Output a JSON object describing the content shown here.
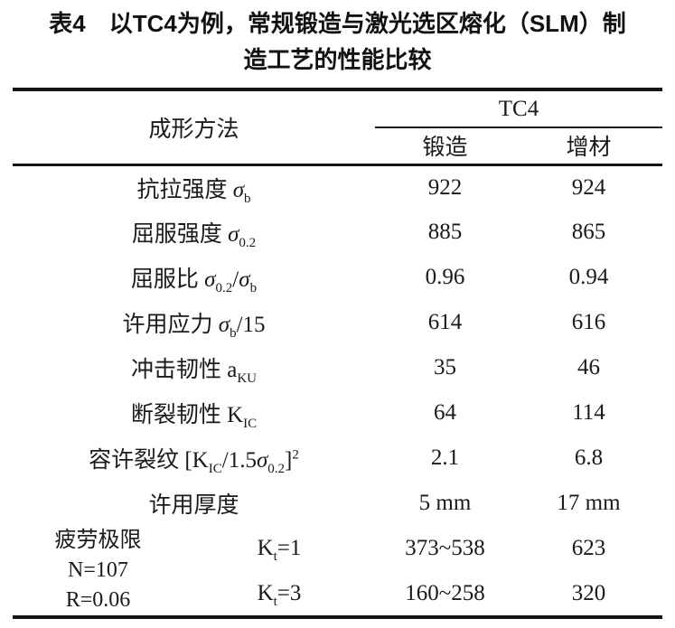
{
  "title": {
    "line1": "表4　以TC4为例，常规锻造与激光选区熔化（SLM）制",
    "line2": "造工艺的性能比较"
  },
  "table": {
    "header": {
      "method": "成形方法",
      "material": "TC4",
      "forging": "锻造",
      "additive": "增材"
    },
    "rows": [
      {
        "name": "抗拉强度 σb",
        "label": [
          {
            "x": "抗拉强度 "
          },
          {
            "x": "σ",
            "i": true
          },
          {
            "x": "b",
            "t": "sub"
          }
        ],
        "forging": "922",
        "additive": "924"
      },
      {
        "name": "屈服强度 σ0.2",
        "label": [
          {
            "x": "屈服强度 "
          },
          {
            "x": "σ",
            "i": true
          },
          {
            "x": "0.2",
            "t": "sub"
          }
        ],
        "forging": "885",
        "additive": "865"
      },
      {
        "name": "屈服比 σ0.2/σb",
        "label": [
          {
            "x": "屈服比 "
          },
          {
            "x": "σ",
            "i": true
          },
          {
            "x": "0.2",
            "t": "sub"
          },
          {
            "x": "/"
          },
          {
            "x": "σ",
            "i": true
          },
          {
            "x": "b",
            "t": "sub"
          }
        ],
        "forging": "0.96",
        "additive": "0.94"
      },
      {
        "name": "许用应力 σb/15",
        "label": [
          {
            "x": "许用应力 "
          },
          {
            "x": "σ",
            "i": true
          },
          {
            "x": "b",
            "t": "sub"
          },
          {
            "x": "/15"
          }
        ],
        "forging": "614",
        "additive": "616"
      },
      {
        "name": "冲击韧性 aKU",
        "label": [
          {
            "x": "冲击韧性  a"
          },
          {
            "x": "KU",
            "t": "sub"
          }
        ],
        "forging": "35",
        "additive": "46"
      },
      {
        "name": "断裂韧性 KIC",
        "label": [
          {
            "x": "断裂韧性  K"
          },
          {
            "x": "IC",
            "t": "sub"
          }
        ],
        "forging": "64",
        "additive": "114"
      },
      {
        "name": "容许裂纹 [KIC/1.5σ0.2]2",
        "label": [
          {
            "x": "容许裂纹  [K"
          },
          {
            "x": "IC",
            "t": "sub"
          },
          {
            "x": "/1.5"
          },
          {
            "x": "σ",
            "i": true
          },
          {
            "x": "0.2",
            "t": "sub"
          },
          {
            "x": "]"
          },
          {
            "x": "2",
            "t": "sup"
          }
        ],
        "forging": "5 mm",
        "additive": "17 mm",
        "forging_value": "2.1",
        "additive_value": "6.8"
      }
    ],
    "row7": {
      "forging": "2.1",
      "additive": "6.8"
    },
    "row8": {
      "label": [
        {
          "x": "许用厚度"
        }
      ],
      "forging": "5 mm",
      "additive": "17 mm"
    },
    "fatigue": {
      "condition_lines": [
        "疲劳极限",
        "N=107",
        "R=0.06"
      ],
      "rows": [
        {
          "label": [
            {
              "x": "K"
            },
            {
              "x": "t",
              "t": "sub"
            },
            {
              "x": "=1"
            }
          ],
          "forging": "373~538",
          "additive": "623"
        },
        {
          "label": [
            {
              "x": "K"
            },
            {
              "x": "t",
              "t": "sub"
            },
            {
              "x": "=3"
            }
          ],
          "forging": "160~258",
          "additive": "320"
        }
      ]
    }
  },
  "colors": {
    "background": "#ffffff",
    "text": "#1a1a1a",
    "rule": "#141414"
  }
}
